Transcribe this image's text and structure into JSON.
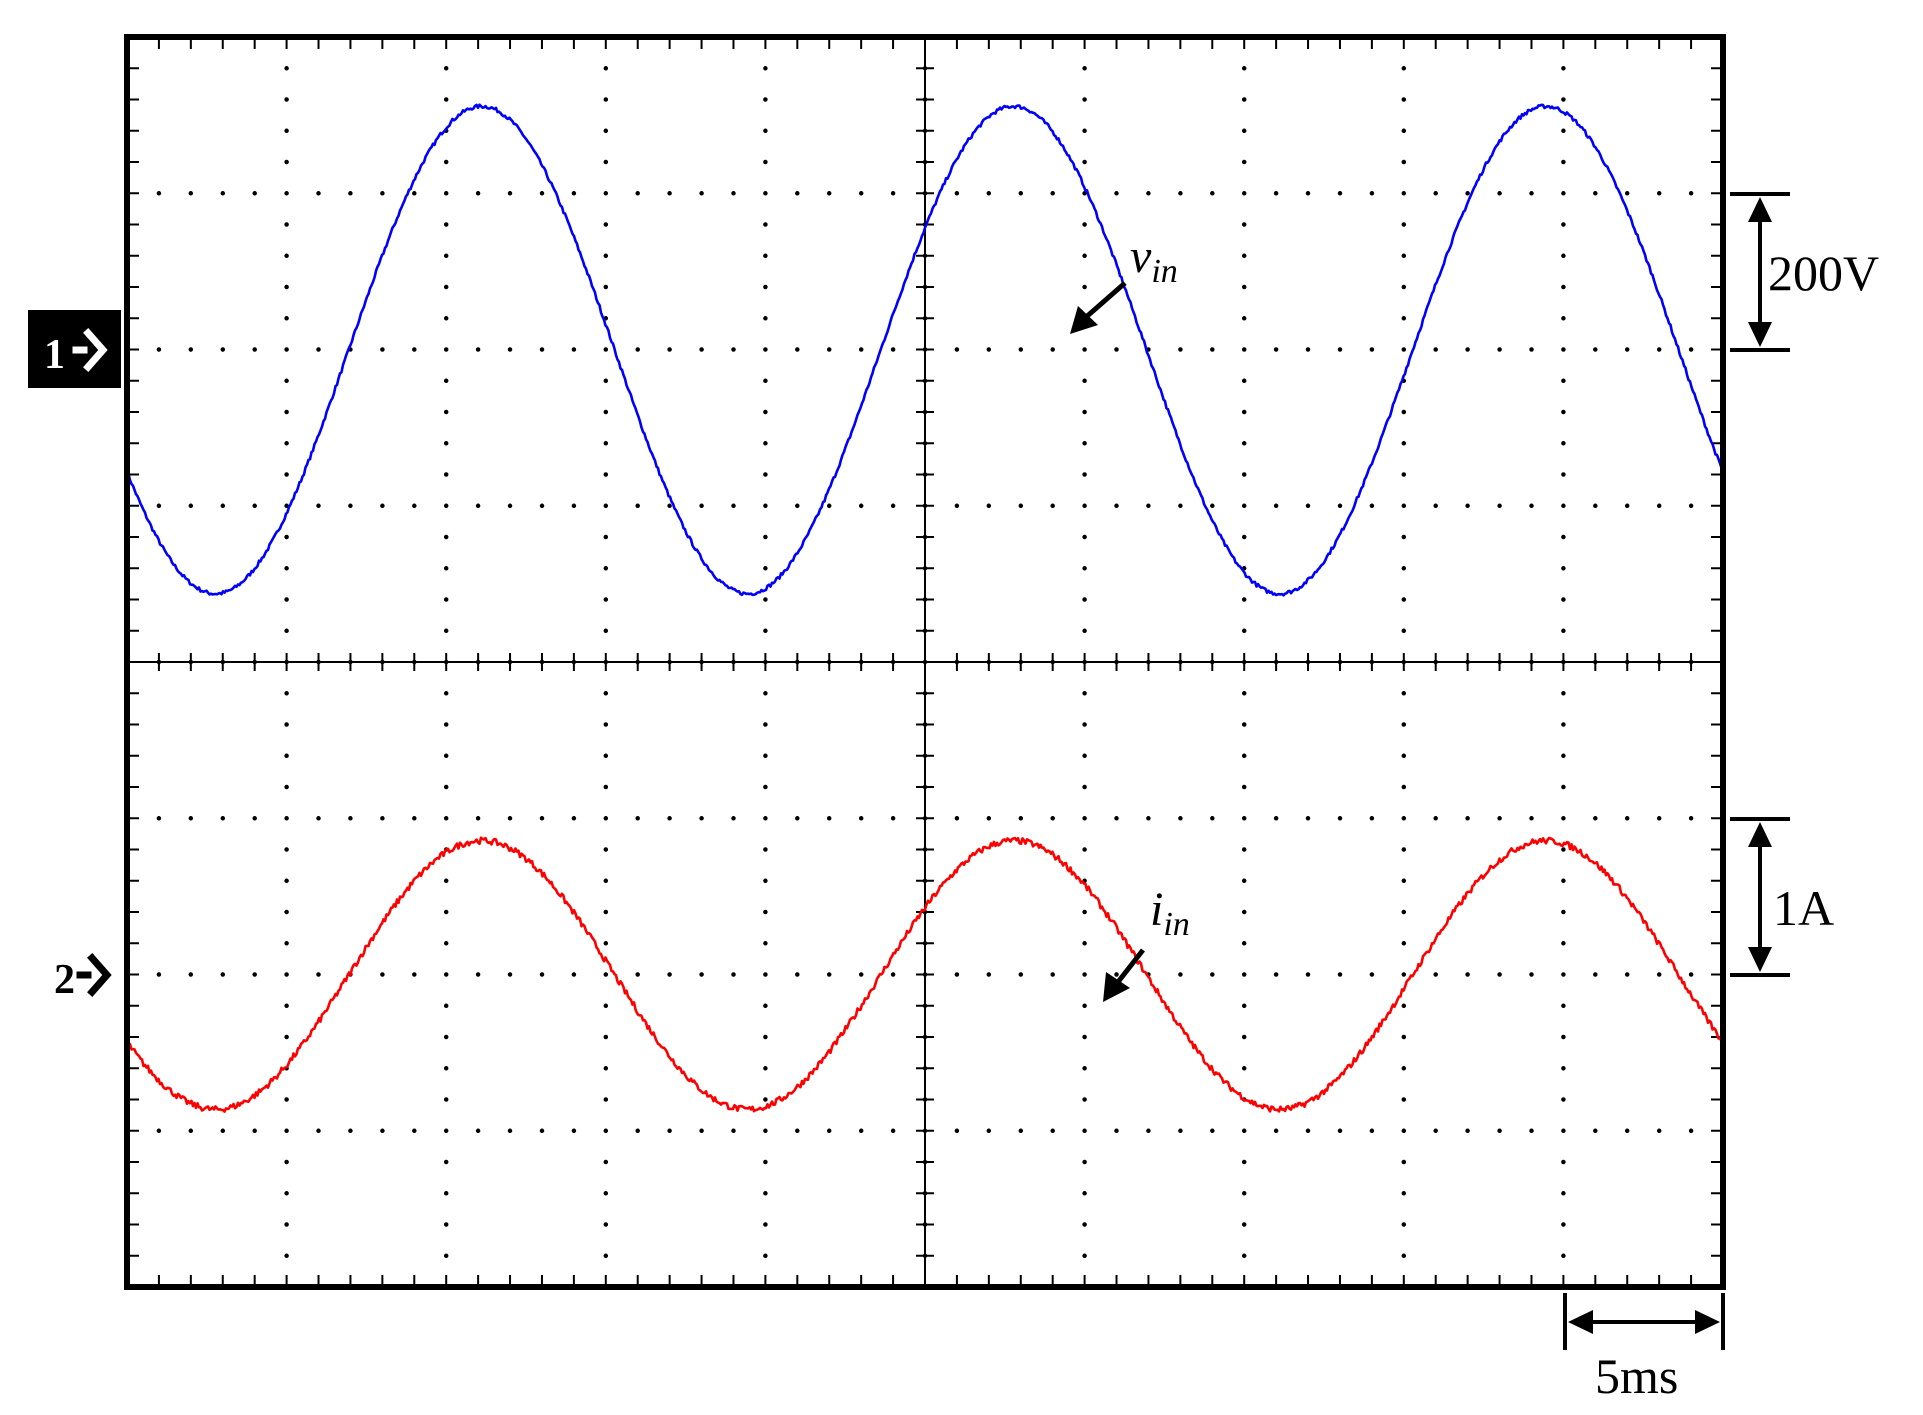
{
  "chart_data": {
    "type": "line",
    "grid": true,
    "x": {
      "unit": "ms",
      "divisions": 10,
      "per_division_label": "5ms",
      "per_division": 5,
      "range": [
        0,
        50
      ]
    },
    "channels": [
      {
        "id": "ch1",
        "marker_label": "1",
        "name": "v",
        "name_sub": "in",
        "scale_label": "200V",
        "per_division": 200,
        "unit": "V",
        "color": "#0000ff",
        "frequency_hz": 60,
        "amplitude_div": 1.56,
        "phase_deg": -150,
        "offset_div": 0,
        "noise_div": 0.012
      },
      {
        "id": "ch2",
        "marker_label": "2",
        "name": "i",
        "name_sub": "in",
        "scale_label": "1A",
        "per_division": 1,
        "unit": "A",
        "color": "#ff0000",
        "frequency_hz": 60,
        "amplitude_div": 0.86,
        "phase_deg": -150,
        "offset_div": 0,
        "noise_div": 0.02
      }
    ]
  }
}
